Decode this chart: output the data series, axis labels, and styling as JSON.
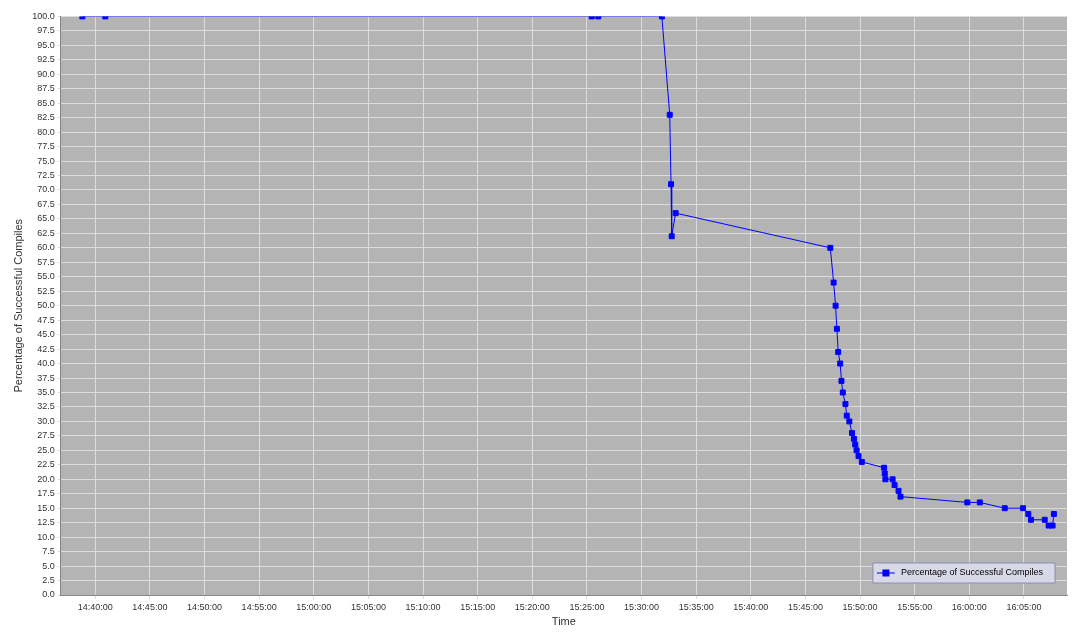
{
  "chart_data": {
    "type": "line",
    "xlabel": "Time",
    "ylabel": "Percentage of Successful Compiles",
    "legend": "bottom right",
    "grid": true,
    "marker": "square",
    "line_style": "solid",
    "xlim": [
      14.614,
      16.149
    ],
    "xticks": [
      {
        "value": 14.666667,
        "label": "14:40:00"
      },
      {
        "value": 14.75,
        "label": "14:45:00"
      },
      {
        "value": 14.833333,
        "label": "14:50:00"
      },
      {
        "value": 14.916667,
        "label": "14:55:00"
      },
      {
        "value": 15,
        "label": "15:00:00"
      },
      {
        "value": 15.083333,
        "label": "15:05:00"
      },
      {
        "value": 15.166667,
        "label": "15:10:00"
      },
      {
        "value": 15.25,
        "label": "15:15:00"
      },
      {
        "value": 15.333333,
        "label": "15:20:00"
      },
      {
        "value": 15.416667,
        "label": "15:25:00"
      },
      {
        "value": 15.5,
        "label": "15:30:00"
      },
      {
        "value": 15.583333,
        "label": "15:35:00"
      },
      {
        "value": 15.666667,
        "label": "15:40:00"
      },
      {
        "value": 15.75,
        "label": "15:45:00"
      },
      {
        "value": 15.833333,
        "label": "15:50:00"
      },
      {
        "value": 15.916667,
        "label": "15:55:00"
      },
      {
        "value": 16,
        "label": "16:00:00"
      },
      {
        "value": 16.083333,
        "label": "16:05:00"
      }
    ],
    "ylim": [
      0,
      100
    ],
    "yticks": [
      {
        "value": 0,
        "label": "0.0"
      },
      {
        "value": 2.5,
        "label": "2.5"
      },
      {
        "value": 5,
        "label": "5.0"
      },
      {
        "value": 7.5,
        "label": "7.5"
      },
      {
        "value": 10,
        "label": "10.0"
      },
      {
        "value": 12.5,
        "label": "12.5"
      },
      {
        "value": 15,
        "label": "15.0"
      },
      {
        "value": 17.5,
        "label": "17.5"
      },
      {
        "value": 20,
        "label": "20.0"
      },
      {
        "value": 22.5,
        "label": "22.5"
      },
      {
        "value": 25,
        "label": "25.0"
      },
      {
        "value": 27.5,
        "label": "27.5"
      },
      {
        "value": 30,
        "label": "30.0"
      },
      {
        "value": 32.5,
        "label": "32.5"
      },
      {
        "value": 35,
        "label": "35.0"
      },
      {
        "value": 37.5,
        "label": "37.5"
      },
      {
        "value": 40,
        "label": "40.0"
      },
      {
        "value": 42.5,
        "label": "42.5"
      },
      {
        "value": 45,
        "label": "45.0"
      },
      {
        "value": 47.5,
        "label": "47.5"
      },
      {
        "value": 50,
        "label": "50.0"
      },
      {
        "value": 52.5,
        "label": "52.5"
      },
      {
        "value": 55,
        "label": "55.0"
      },
      {
        "value": 57.5,
        "label": "57.5"
      },
      {
        "value": 60,
        "label": "60.0"
      },
      {
        "value": 62.5,
        "label": "62.5"
      },
      {
        "value": 65,
        "label": "65.0"
      },
      {
        "value": 67.5,
        "label": "67.5"
      },
      {
        "value": 70,
        "label": "70.0"
      },
      {
        "value": 72.5,
        "label": "72.5"
      },
      {
        "value": 75,
        "label": "75.0"
      },
      {
        "value": 77.5,
        "label": "77.5"
      },
      {
        "value": 80,
        "label": "80.0"
      },
      {
        "value": 82.5,
        "label": "82.5"
      },
      {
        "value": 85,
        "label": "85.0"
      },
      {
        "value": 87.5,
        "label": "87.5"
      },
      {
        "value": 90,
        "label": "90.0"
      },
      {
        "value": 92.5,
        "label": "92.5"
      },
      {
        "value": 95,
        "label": "95.0"
      },
      {
        "value": 97.5,
        "label": "97.5"
      },
      {
        "value": 100,
        "label": "100.0"
      }
    ],
    "series": [
      {
        "name": "Percentage of Successful Compiles",
        "color": "#0000ff",
        "x": [
          14.647,
          14.682,
          15.424,
          15.434,
          15.531,
          15.543,
          15.545,
          15.546,
          15.552,
          15.788,
          15.793,
          15.796,
          15.798,
          15.8,
          15.803,
          15.805,
          15.807,
          15.811,
          15.813,
          15.817,
          15.821,
          15.824,
          15.826,
          15.828,
          15.831,
          15.836,
          15.87,
          15.871,
          15.872,
          15.883,
          15.886,
          15.892,
          15.895,
          15.997,
          16.016,
          16.054,
          16.082,
          16.09,
          16.094,
          16.115,
          16.121,
          16.127,
          16.129
        ],
        "values": [
          100,
          100,
          100,
          100,
          100,
          83,
          71,
          62,
          66,
          60,
          54,
          50,
          46,
          42,
          40,
          37,
          35,
          33,
          31,
          30,
          28,
          27,
          26,
          25,
          24,
          23,
          22,
          21,
          20,
          20,
          19,
          18,
          17,
          16,
          16,
          15,
          15,
          14,
          13,
          13,
          12,
          12,
          14
        ]
      }
    ]
  }
}
